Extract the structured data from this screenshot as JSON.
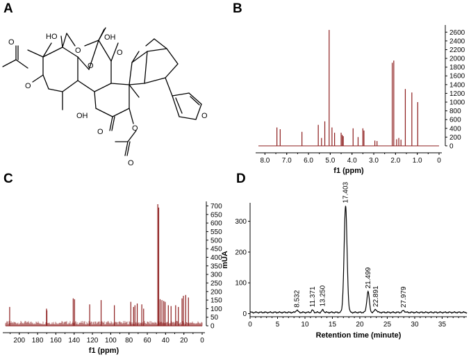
{
  "panels": {
    "a": "A",
    "b": "B",
    "c": "C",
    "d": "D"
  },
  "structure": {
    "atom_labels": [
      "HO",
      "OH",
      "O",
      "O",
      "O",
      "O",
      "O",
      "O",
      "OH",
      "O",
      "O",
      "O"
    ]
  },
  "colors": {
    "spectrum": "#8b1a1a",
    "trace": "#000000"
  },
  "chart_data": [
    {
      "type": "nmr-spectrum",
      "panel": "B",
      "xlabel": "f1 (ppm)",
      "ylabel": "",
      "x_reversed": true,
      "xlim": [
        0,
        8.3
      ],
      "ylim": [
        -80,
        2700
      ],
      "xticks": [
        "8.0",
        "7.0",
        "6.0",
        "5.0",
        "4.0",
        "3.0",
        "2.0",
        "1.0",
        "0"
      ],
      "yticks": [
        "0",
        "200",
        "400",
        "600",
        "800",
        "1000",
        "1200",
        "1400",
        "1600",
        "1800",
        "2000",
        "2200",
        "2400",
        "2600"
      ],
      "peaks": [
        {
          "x": 7.45,
          "y": 420
        },
        {
          "x": 7.3,
          "y": 380
        },
        {
          "x": 6.3,
          "y": 320
        },
        {
          "x": 5.55,
          "y": 480
        },
        {
          "x": 5.4,
          "y": 180
        },
        {
          "x": 5.25,
          "y": 560
        },
        {
          "x": 5.05,
          "y": 2650
        },
        {
          "x": 4.92,
          "y": 420
        },
        {
          "x": 4.8,
          "y": 300
        },
        {
          "x": 4.5,
          "y": 300
        },
        {
          "x": 4.45,
          "y": 250
        },
        {
          "x": 4.4,
          "y": 220
        },
        {
          "x": 3.95,
          "y": 400
        },
        {
          "x": 3.72,
          "y": 200
        },
        {
          "x": 3.5,
          "y": 400
        },
        {
          "x": 3.45,
          "y": 350
        },
        {
          "x": 2.95,
          "y": 120
        },
        {
          "x": 2.85,
          "y": 110
        },
        {
          "x": 2.15,
          "y": 1900
        },
        {
          "x": 2.08,
          "y": 1950
        },
        {
          "x": 1.95,
          "y": 150
        },
        {
          "x": 1.85,
          "y": 180
        },
        {
          "x": 1.75,
          "y": 140
        },
        {
          "x": 1.55,
          "y": 1300
        },
        {
          "x": 1.25,
          "y": 1220
        },
        {
          "x": 0.98,
          "y": 1000
        }
      ]
    },
    {
      "type": "nmr-spectrum",
      "panel": "C",
      "xlabel": "f1 (ppm)",
      "ylabel": "",
      "x_reversed": true,
      "xlim": [
        0,
        215
      ],
      "ylim": [
        -20,
        710
      ],
      "xticks": [
        "200",
        "180",
        "160",
        "140",
        "120",
        "100",
        "80",
        "60",
        "40",
        "20",
        "0"
      ],
      "yticks": [
        "0",
        "50",
        "100",
        "150",
        "200",
        "250",
        "300",
        "350",
        "400",
        "450",
        "500",
        "550",
        "600",
        "650",
        "700"
      ],
      "peaks": [
        {
          "x": 210.5,
          "y": 110
        },
        {
          "x": 170.2,
          "y": 100
        },
        {
          "x": 169.8,
          "y": 90
        },
        {
          "x": 141,
          "y": 160
        },
        {
          "x": 139.5,
          "y": 155
        },
        {
          "x": 123,
          "y": 125
        },
        {
          "x": 110.5,
          "y": 150
        },
        {
          "x": 96,
          "y": 120
        },
        {
          "x": 78,
          "y": 140
        },
        {
          "x": 75,
          "y": 110
        },
        {
          "x": 73.5,
          "y": 120
        },
        {
          "x": 71,
          "y": 130
        },
        {
          "x": 66,
          "y": 125
        },
        {
          "x": 64,
          "y": 100
        },
        {
          "x": 48.5,
          "y": 710
        },
        {
          "x": 47.5,
          "y": 690
        },
        {
          "x": 46,
          "y": 155
        },
        {
          "x": 44,
          "y": 150
        },
        {
          "x": 42,
          "y": 145
        },
        {
          "x": 40.5,
          "y": 140
        },
        {
          "x": 37,
          "y": 120
        },
        {
          "x": 34,
          "y": 115
        },
        {
          "x": 29,
          "y": 120
        },
        {
          "x": 26,
          "y": 110
        },
        {
          "x": 22,
          "y": 160
        },
        {
          "x": 20.5,
          "y": 175
        },
        {
          "x": 18,
          "y": 180
        },
        {
          "x": 15,
          "y": 165
        }
      ]
    },
    {
      "type": "line",
      "panel": "D",
      "xlabel": "Retention time (minute)",
      "ylabel": "mUA",
      "xlim": [
        0,
        39.5
      ],
      "ylim": [
        -10,
        360
      ],
      "xticks": [
        "0",
        "5",
        "10",
        "15",
        "20",
        "25",
        "30",
        "35"
      ],
      "yticks": [
        "0",
        "100",
        "200",
        "300"
      ],
      "peaks": [
        {
          "rt": 8.532,
          "h": 8,
          "w": 0.25,
          "label": "8.532"
        },
        {
          "rt": 11.371,
          "h": 7,
          "w": 0.25,
          "label": "11.371"
        },
        {
          "rt": 13.25,
          "h": 8,
          "w": 0.25,
          "label": "13.250"
        },
        {
          "rt": 17.403,
          "h": 345,
          "w": 0.38,
          "label": "17.403"
        },
        {
          "rt": 21.499,
          "h": 68,
          "w": 0.32,
          "label": "21.499"
        },
        {
          "rt": 22.891,
          "h": 10,
          "w": 0.3,
          "label": "22.891"
        },
        {
          "rt": 27.979,
          "h": 6,
          "w": 0.3,
          "label": "27.979"
        }
      ]
    }
  ]
}
